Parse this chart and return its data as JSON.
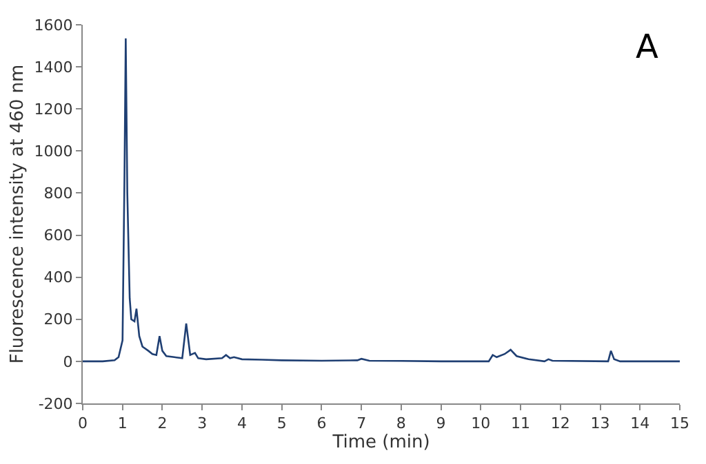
{
  "chart_data": {
    "type": "line",
    "xlabel": "Time (min)",
    "ylabel": "Fluorescence intensity at 460 nm",
    "annotations": [
      "A"
    ],
    "x": [
      0,
      0.5,
      0.8,
      0.9,
      1.0,
      1.05,
      1.08,
      1.12,
      1.18,
      1.22,
      1.3,
      1.35,
      1.42,
      1.5,
      1.65,
      1.75,
      1.85,
      1.93,
      2.0,
      2.1,
      2.3,
      2.5,
      2.6,
      2.7,
      2.82,
      2.9,
      3.1,
      3.5,
      3.6,
      3.7,
      3.8,
      4.0,
      4.5,
      5,
      6,
      6.9,
      7.0,
      7.2,
      8,
      9,
      10.2,
      10.3,
      10.4,
      10.6,
      10.75,
      10.9,
      11.2,
      11.6,
      11.7,
      11.8,
      13.2,
      13.27,
      13.35,
      13.5,
      15
    ],
    "series": [
      {
        "color": "#1f3f73",
        "values": [
          0,
          0,
          5,
          20,
          100,
          900,
          1535,
          800,
          300,
          200,
          190,
          250,
          120,
          70,
          50,
          35,
          30,
          120,
          50,
          25,
          20,
          15,
          180,
          30,
          40,
          15,
          10,
          15,
          30,
          15,
          20,
          10,
          8,
          5,
          3,
          5,
          12,
          3,
          2,
          0,
          0,
          30,
          20,
          35,
          55,
          25,
          10,
          0,
          10,
          3,
          0,
          50,
          10,
          0,
          0
        ]
      }
    ],
    "xlim": [
      0,
      15
    ],
    "xticks": [
      0,
      1,
      2,
      3,
      4,
      5,
      6,
      7,
      8,
      9,
      10,
      11,
      12,
      13,
      14,
      15
    ],
    "ylim": [
      -200,
      1600
    ],
    "yticks": [
      -200,
      0,
      200,
      400,
      600,
      800,
      1000,
      1200,
      1400,
      1600
    ],
    "marker": "none",
    "line_style": "solid"
  }
}
